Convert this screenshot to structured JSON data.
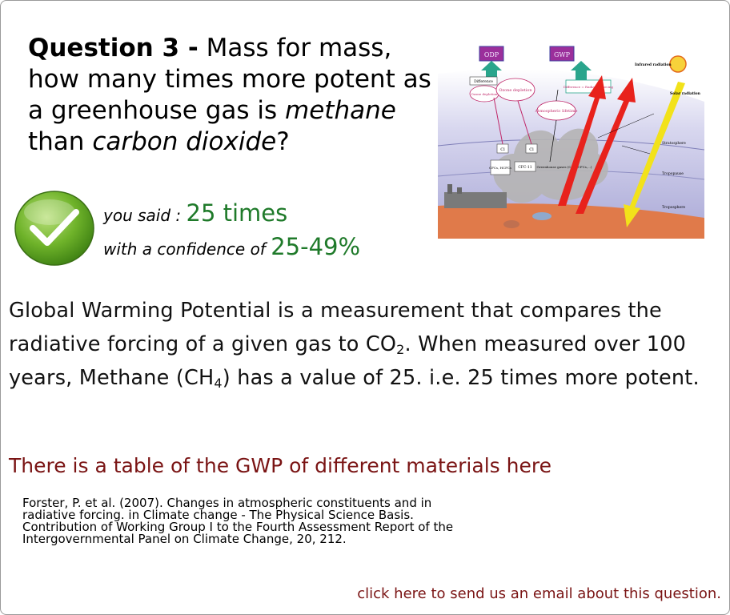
{
  "question": {
    "number": "Question 3 -",
    "text_a": " Mass for mass, how many times more potent as a greenhouse gas is ",
    "text_em1": "methane",
    "text_b": " than ",
    "text_em2": "carbon dioxide",
    "text_c": "?"
  },
  "answer": {
    "said_label": "you said : ",
    "said_value": "25 times",
    "confidence_label": "with a confidence of ",
    "confidence_value": "25-49%"
  },
  "explanation": {
    "part1": "Global Warming Potential is a measurement that compares the radiative forcing of a given gas to CO",
    "sub1": "2",
    "part2": ". When measured over 100 years, Methane (CH",
    "sub2": "4",
    "part3": ") has a value of 25. i.e. 25 times more potent."
  },
  "table_link": "There is a table of the GWP of different materials here",
  "reference": "Forster, P. et al. (2007). Changes in atmospheric constituents and in radiative forcing. in Climate change - The Physical Science Basis. Contribution of Working Group I to the Fourth Assessment Report of the Intergovernmental Panel on Climate Change, 20, 212.",
  "email_link": "click here to send us an email about this question.",
  "diagram": {
    "odp": "ODP",
    "gwp": "GWP",
    "infrared": "Infrared radiation",
    "solar": "Solar radiation",
    "difference1": "Difference",
    "ozone_depletion_small": "Ozone depletion",
    "ozone_depletion": "Ozone depletion",
    "difference2": "Difference = Radiative forcing",
    "atm_lifetime": "Atmospheric lifetime",
    "cl1": "Cl",
    "cl2": "Cl",
    "cfcs": "CFCs, HCFCs",
    "cfc11": "CFC-11",
    "ghg": "Greenhouse gases (CO2, CFCs,...)",
    "stratosphere": "Stratosphere",
    "tropopause": "Tropopause",
    "troposphere": "Troposphere"
  },
  "colors": {
    "answer_green": "#1f7a2a",
    "link_red": "#7a1414",
    "sky": "#c9c8e6",
    "ground": "#e07a4a",
    "odp_box": "#9b2f9b",
    "gwp_box": "#9b2f9b",
    "red_arrow": "#e8221c",
    "yellow_arrow": "#f2e21a",
    "teal_arrow": "#2aa58c"
  }
}
